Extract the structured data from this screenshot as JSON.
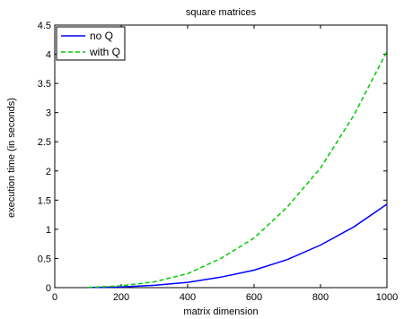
{
  "chart_data": {
    "type": "line",
    "title": "square matrices",
    "xlabel": "matrix dimension",
    "ylabel": "execution time (in seconds)",
    "xlim": [
      0,
      1000
    ],
    "ylim": [
      0,
      4.5
    ],
    "xticks": [
      0,
      200,
      400,
      600,
      800,
      1000
    ],
    "yticks": [
      0,
      0.5,
      1,
      1.5,
      2,
      2.5,
      3,
      3.5,
      4,
      4.5
    ],
    "ytick_labels": [
      "0",
      "0.5",
      "1",
      "1.5",
      "2",
      "2.5",
      "3",
      "3.5",
      "4",
      "4.5"
    ],
    "grid": false,
    "legend_position": "top-left",
    "series": [
      {
        "name": "no Q",
        "color": "#0000ff",
        "style": "solid",
        "x": [
          100,
          200,
          300,
          400,
          500,
          600,
          700,
          800,
          900,
          1000
        ],
        "y": [
          0.002,
          0.012,
          0.04,
          0.09,
          0.18,
          0.3,
          0.48,
          0.73,
          1.04,
          1.43
        ]
      },
      {
        "name": "with Q",
        "color": "#00cc00",
        "style": "dashed",
        "x": [
          100,
          200,
          300,
          400,
          500,
          600,
          700,
          800,
          900,
          1000
        ],
        "y": [
          0.005,
          0.03,
          0.1,
          0.24,
          0.5,
          0.85,
          1.38,
          2.05,
          2.95,
          4.05
        ]
      }
    ]
  }
}
